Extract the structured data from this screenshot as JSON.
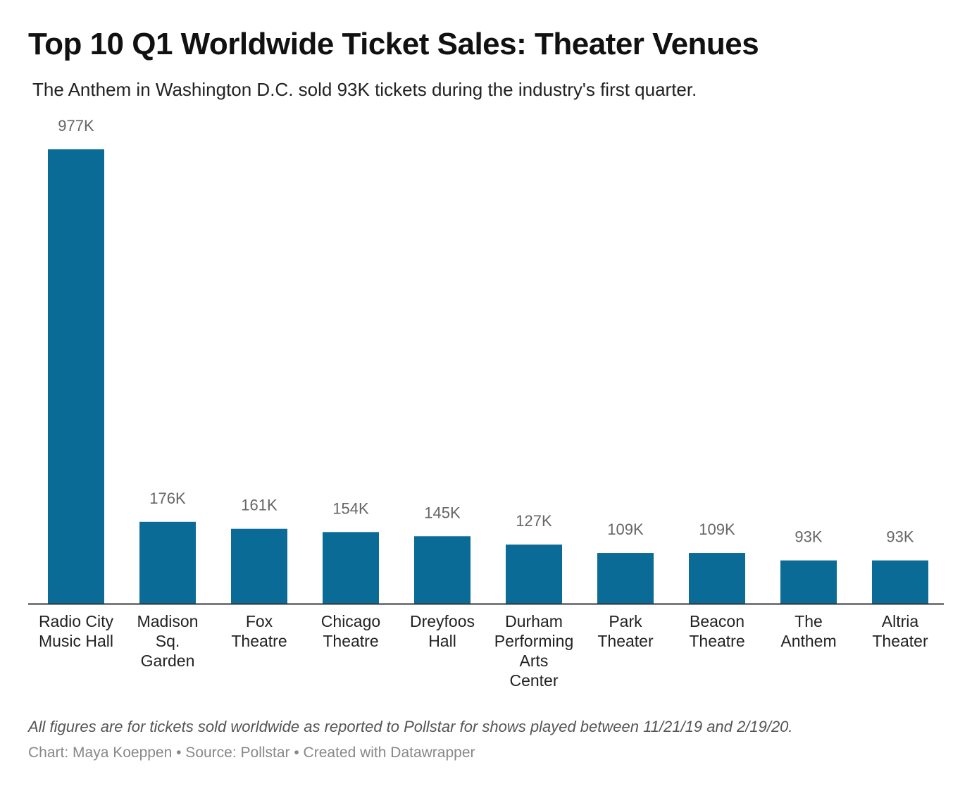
{
  "chart_data": {
    "type": "bar",
    "title": "Top 10 Q1 Worldwide Ticket Sales: Theater Venues",
    "subtitle": "The Anthem in Washington D.C. sold 93K tickets during the industry's first quarter.",
    "categories": [
      [
        "Radio City",
        "Music Hall"
      ],
      [
        "Madison",
        "Sq.",
        "Garden"
      ],
      [
        "Fox",
        "Theatre"
      ],
      [
        "Chicago",
        "Theatre"
      ],
      [
        "Dreyfoos",
        "Hall"
      ],
      [
        "Durham",
        "Performing",
        "Arts",
        "Center"
      ],
      [
        "Park",
        "Theater"
      ],
      [
        "Beacon",
        "Theatre"
      ],
      [
        "The",
        "Anthem"
      ],
      [
        "Altria",
        "Theater"
      ]
    ],
    "values": [
      977,
      176,
      161,
      154,
      145,
      127,
      109,
      109,
      93,
      93
    ],
    "data_labels": [
      "977K",
      "176K",
      "161K",
      "154K",
      "145K",
      "127K",
      "109K",
      "109K",
      "93K",
      "93K"
    ],
    "ylim": [
      0,
      977
    ],
    "grid": false,
    "legend": "none",
    "bar_color": "#0a6c96"
  },
  "footer": {
    "note": "All figures are for tickets sold worldwide as reported to Pollstar for shows played between 11/21/19 and 2/19/20.",
    "byline": "Chart: Maya Koeppen • Source: Pollstar • Created with Datawrapper"
  }
}
